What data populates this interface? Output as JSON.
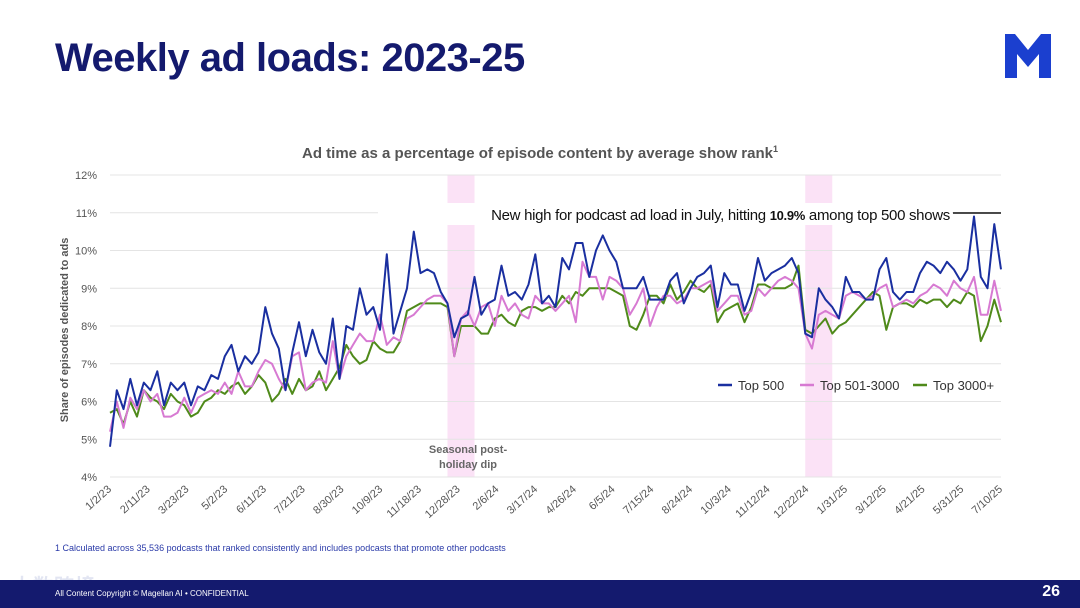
{
  "slide": {
    "title": "Weekly ad loads: 2023-25",
    "footnote": "1 Calculated across 35,536 podcasts that ranked consistently and includes podcasts that promote other podcasts",
    "footer_text": "All Content Copyright © Magellan AI • CONFIDENTIAL",
    "page_number": "26",
    "watermark": "大数跨境"
  },
  "colors": {
    "navy": "#141a6e",
    "logo": "#1b3fcf",
    "shade": "#fbe2f6"
  },
  "chart_data": {
    "type": "line",
    "title": "Ad time as a percentage of episode content by average show rank",
    "title_sup": "1",
    "ylabel": "Share of episodes dedicated to ads",
    "ylim": [
      4,
      12
    ],
    "ytick_labels": [
      "4%",
      "5%",
      "6%",
      "7%",
      "8%",
      "9%",
      "10%",
      "11%",
      "12%"
    ],
    "grid": "horizontal",
    "legend_position": "lower-right",
    "xtick_labels": [
      "1/2/23",
      "2/11/23",
      "3/23/23",
      "5/2/23",
      "6/11/23",
      "7/21/23",
      "8/30/23",
      "10/9/23",
      "11/18/23",
      "12/28/23",
      "2/6/24",
      "3/17/24",
      "4/26/24",
      "6/5/24",
      "7/15/24",
      "8/24/24",
      "10/3/24",
      "11/12/24",
      "12/22/24",
      "1/31/25",
      "3/12/25",
      "4/21/25",
      "5/31/25",
      "7/10/25"
    ],
    "shaded_regions": [
      [
        50,
        54
      ],
      [
        103,
        107
      ]
    ],
    "annotations": {
      "shade_label_line1": "Seasonal post-",
      "shade_label_line2": "holiday dip",
      "callout_text": "New high for podcast ad load in July, hitting ",
      "callout_value": "10.9%",
      "callout_suffix": " among top 500 shows"
    },
    "series": [
      {
        "name": "Top 500",
        "color": "#1a2fa0",
        "values": [
          4.8,
          6.3,
          5.8,
          6.6,
          5.9,
          6.5,
          6.3,
          6.8,
          5.9,
          6.5,
          6.3,
          6.5,
          5.9,
          6.4,
          6.3,
          6.7,
          6.6,
          7.2,
          7.5,
          6.8,
          7.2,
          7.0,
          7.3,
          8.5,
          7.8,
          7.4,
          6.3,
          7.3,
          8.1,
          7.2,
          7.9,
          7.3,
          7.0,
          8.2,
          6.6,
          8.0,
          7.9,
          9.0,
          8.3,
          8.5,
          7.9,
          9.9,
          7.8,
          8.4,
          9.0,
          10.5,
          9.4,
          9.5,
          9.4,
          8.9,
          8.6,
          7.7,
          8.2,
          8.3,
          9.3,
          8.3,
          8.6,
          8.7,
          9.6,
          8.8,
          8.9,
          8.7,
          9.1,
          9.9,
          8.6,
          8.8,
          8.5,
          9.8,
          9.5,
          10.2,
          10.2,
          9.3,
          10.0,
          10.4,
          10.0,
          9.7,
          9.0,
          9.0,
          9.0,
          9.3,
          8.7,
          8.7,
          8.7,
          9.2,
          9.4,
          8.6,
          9.0,
          9.3,
          9.4,
          9.6,
          8.5,
          9.4,
          9.1,
          9.1,
          8.4,
          8.9,
          9.8,
          9.2,
          9.4,
          9.5,
          9.6,
          9.8,
          9.4,
          7.8,
          7.7,
          9.0,
          8.7,
          8.5,
          8.2,
          9.3,
          8.9,
          8.9,
          8.7,
          8.7,
          9.5,
          9.8,
          8.9,
          8.7,
          8.9,
          8.9,
          9.4,
          9.7,
          9.6,
          9.4,
          9.7,
          9.5,
          9.2,
          9.5,
          10.9,
          9.3,
          9.0,
          10.7,
          9.5
        ]
      },
      {
        "name": "Top 501-3000",
        "color": "#d77ad2",
        "values": [
          5.2,
          6.0,
          5.3,
          6.1,
          5.8,
          6.3,
          6.0,
          6.2,
          5.6,
          5.6,
          5.7,
          6.1,
          5.7,
          6.1,
          6.2,
          6.3,
          6.2,
          6.5,
          6.2,
          6.8,
          6.4,
          6.4,
          6.8,
          7.1,
          7.0,
          6.6,
          6.3,
          7.2,
          7.3,
          6.3,
          6.5,
          6.6,
          6.5,
          7.6,
          6.6,
          7.2,
          7.5,
          7.8,
          7.6,
          7.6,
          8.3,
          7.5,
          7.7,
          7.6,
          8.2,
          8.3,
          8.5,
          8.7,
          8.8,
          8.8,
          8.6,
          7.2,
          8.2,
          8.4,
          8.0,
          8.5,
          8.6,
          8.0,
          8.8,
          8.4,
          8.6,
          8.3,
          8.2,
          8.8,
          8.6,
          8.6,
          8.4,
          8.6,
          8.8,
          8.1,
          9.7,
          9.3,
          9.3,
          8.7,
          9.3,
          9.2,
          9.0,
          8.3,
          8.6,
          9.0,
          8.0,
          8.5,
          8.8,
          8.8,
          8.6,
          8.7,
          9.0,
          9.0,
          9.1,
          9.2,
          8.4,
          8.6,
          8.8,
          8.8,
          8.3,
          8.4,
          9.0,
          8.8,
          9.0,
          9.2,
          9.3,
          9.2,
          9.0,
          7.8,
          7.4,
          8.3,
          8.4,
          8.3,
          8.2,
          8.8,
          8.9,
          8.8,
          8.7,
          8.8,
          9.0,
          9.1,
          8.5,
          8.6,
          8.7,
          8.6,
          8.8,
          8.9,
          9.1,
          9.0,
          8.8,
          9.2,
          9.0,
          8.9,
          9.3,
          8.3,
          8.3,
          9.2,
          8.4
        ]
      },
      {
        "name": "Top 3000+",
        "color": "#4f8a1a",
        "values": [
          5.7,
          5.8,
          5.4,
          6.0,
          5.6,
          6.3,
          6.1,
          6.0,
          5.8,
          6.2,
          6.0,
          5.9,
          5.6,
          5.7,
          6.0,
          6.1,
          6.3,
          6.2,
          6.4,
          6.5,
          6.2,
          6.4,
          6.7,
          6.5,
          6.0,
          6.2,
          6.6,
          6.2,
          6.6,
          6.3,
          6.4,
          6.8,
          6.3,
          6.6,
          6.9,
          7.5,
          7.2,
          7.0,
          7.1,
          7.6,
          7.4,
          7.3,
          7.3,
          7.6,
          8.4,
          8.5,
          8.6,
          8.6,
          8.6,
          8.6,
          8.5,
          7.2,
          8.0,
          8.0,
          8.0,
          7.8,
          7.8,
          8.2,
          8.3,
          8.1,
          8.0,
          8.4,
          8.5,
          8.5,
          8.4,
          8.5,
          8.5,
          8.8,
          8.6,
          8.9,
          8.8,
          9.0,
          9.0,
          9.0,
          9.0,
          8.9,
          8.8,
          8.0,
          7.9,
          8.3,
          8.8,
          8.8,
          8.6,
          9.1,
          8.7,
          8.9,
          9.2,
          9.0,
          8.9,
          9.1,
          8.1,
          8.4,
          8.5,
          8.6,
          8.1,
          8.5,
          9.1,
          9.1,
          9.0,
          9.0,
          9.0,
          9.1,
          9.6,
          7.9,
          7.8,
          8.0,
          8.2,
          7.8,
          8.0,
          8.1,
          8.3,
          8.5,
          8.7,
          8.9,
          8.8,
          7.9,
          8.5,
          8.6,
          8.6,
          8.5,
          8.7,
          8.6,
          8.7,
          8.7,
          8.5,
          8.7,
          8.6,
          8.9,
          8.8,
          7.6,
          8.0,
          8.7,
          8.1
        ]
      }
    ]
  }
}
